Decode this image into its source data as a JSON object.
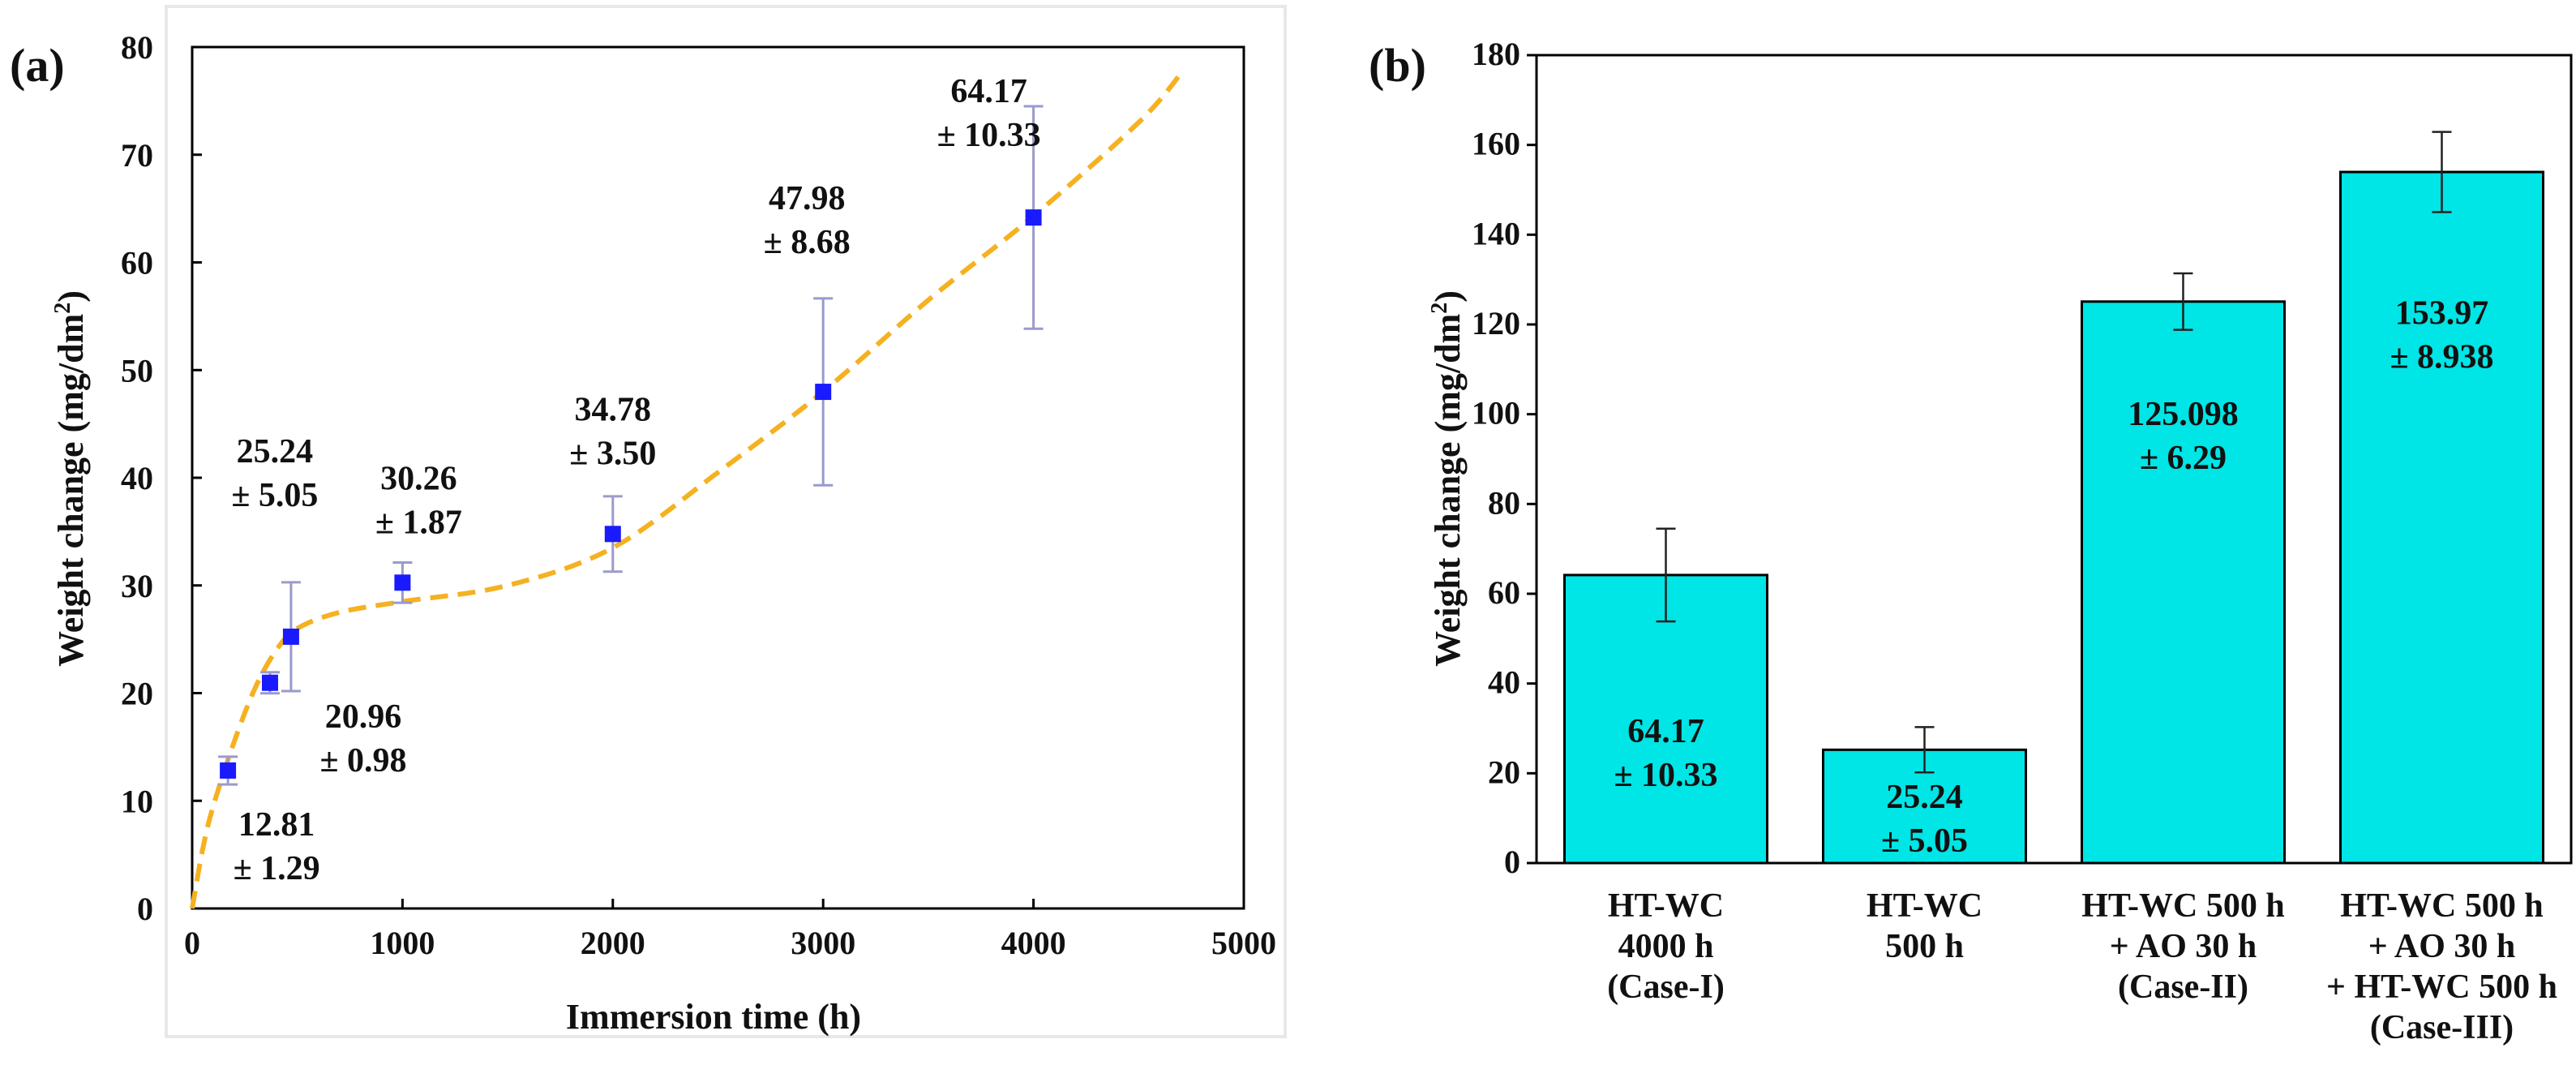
{
  "panels": {
    "a": {
      "label": "(a)"
    },
    "b": {
      "label": "(b)"
    }
  },
  "colors": {
    "marker": "#1a1aff",
    "fit_line": "#f5b120",
    "error_bar_a": "#9a9acc",
    "bar_fill": "#00e5e5",
    "axis": "#000000"
  },
  "chart_data": [
    {
      "type": "scatter",
      "panel": "a",
      "xlabel": "Immersion time (h)",
      "ylabel_main": "Weight change (mg/dm",
      "ylabel_sup": "2",
      "ylabel_end": ")",
      "xlim": [
        0,
        5000
      ],
      "ylim": [
        0,
        80
      ],
      "xticks": [
        0,
        1000,
        2000,
        3000,
        4000,
        5000
      ],
      "yticks": [
        0,
        10,
        20,
        30,
        40,
        50,
        60,
        70,
        80
      ],
      "points": [
        {
          "x": 170,
          "y": 12.81,
          "err": 1.29,
          "label_value": "12.81",
          "label_err": "± 1.29"
        },
        {
          "x": 370,
          "y": 20.96,
          "err": 0.98,
          "label_value": "20.96",
          "label_err": "± 0.98"
        },
        {
          "x": 470,
          "y": 25.24,
          "err": 5.05,
          "label_value": "25.24",
          "label_err": "± 5.05"
        },
        {
          "x": 1000,
          "y": 30.26,
          "err": 1.87,
          "label_value": "30.26",
          "label_err": "± 1.87"
        },
        {
          "x": 2000,
          "y": 34.78,
          "err": 3.5,
          "label_value": "34.78",
          "label_err": "± 3.50"
        },
        {
          "x": 3000,
          "y": 47.98,
          "err": 8.68,
          "label_value": "47.98",
          "label_err": "± 8.68"
        },
        {
          "x": 4000,
          "y": 64.17,
          "err": 10.33,
          "label_value": "64.17",
          "label_err": "± 10.33"
        }
      ],
      "fit_curve": {
        "style": "dashed",
        "x": [
          0,
          50,
          100,
          200,
          300,
          400,
          500,
          700,
          1000,
          1500,
          2000,
          2500,
          3000,
          3500,
          4000,
          4500,
          4700
        ],
        "y": [
          0,
          5.5,
          9.5,
          15.5,
          20.5,
          24.0,
          26.0,
          27.5,
          28.5,
          30.0,
          33.5,
          40.5,
          48.0,
          56.5,
          64.3,
          73.0,
          77.5
        ]
      }
    },
    {
      "type": "bar",
      "panel": "b",
      "ylabel_main": "Weight change (mg/dm",
      "ylabel_sup": "2",
      "ylabel_end": ")",
      "ylim": [
        0,
        180
      ],
      "yticks": [
        0,
        20,
        40,
        60,
        80,
        100,
        120,
        140,
        160,
        180
      ],
      "categories": [
        [
          "HT-WC",
          "4000 h",
          "(Case-I)"
        ],
        [
          "HT-WC",
          "500 h"
        ],
        [
          "HT-WC 500 h",
          "+ AO 30 h",
          "(Case-II)"
        ],
        [
          "HT-WC 500 h",
          "+ AO 30 h",
          "+ HT-WC 500 h",
          "(Case-III)"
        ]
      ],
      "values": [
        64.17,
        25.24,
        125.098,
        153.97
      ],
      "errors": [
        10.33,
        5.05,
        6.29,
        8.938
      ],
      "bar_labels": [
        [
          "64.17",
          "± 10.33"
        ],
        [
          "25.24",
          "± 5.05"
        ],
        [
          "125.098",
          "± 6.29"
        ],
        [
          "153.97",
          "± 8.938"
        ]
      ]
    }
  ]
}
